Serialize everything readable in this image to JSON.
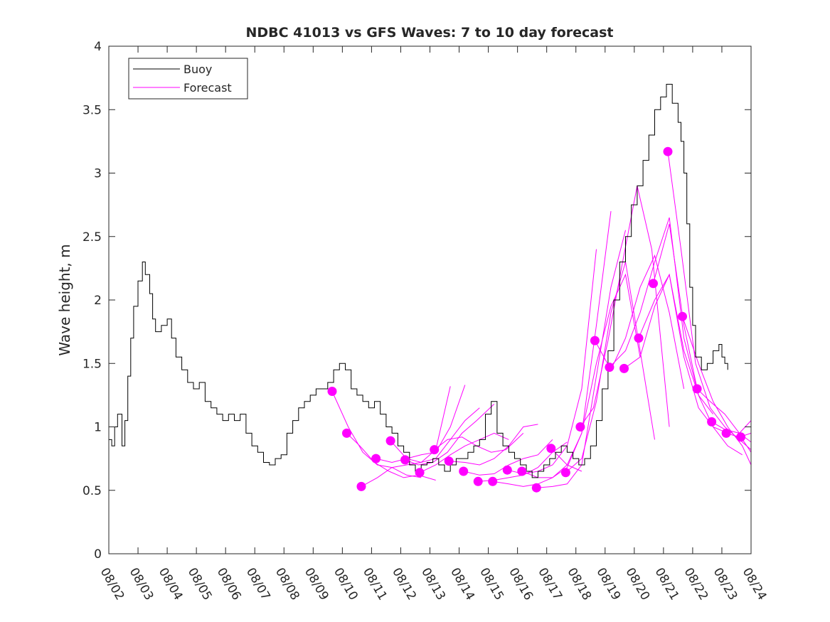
{
  "chart_data": {
    "type": "line",
    "title": "NDBC 41013 vs GFS Waves: 7 to 10 day forecast",
    "xlabel": "",
    "ylabel": "Wave height, m",
    "xlim": [
      0,
      22
    ],
    "ylim": [
      0,
      4
    ],
    "x_tick_labels": [
      "08/02",
      "08/03",
      "08/04",
      "08/05",
      "08/06",
      "08/07",
      "08/08",
      "08/09",
      "08/10",
      "08/11",
      "08/12",
      "08/13",
      "08/14",
      "08/15",
      "08/16",
      "08/17",
      "08/18",
      "08/19",
      "08/20",
      "08/21",
      "08/22",
      "08/23",
      "08/24"
    ],
    "y_tick_labels": [
      "0",
      "0.5",
      "1",
      "1.5",
      "2",
      "2.5",
      "3",
      "3.5",
      "4"
    ],
    "y_ticks": [
      0,
      0.5,
      1,
      1.5,
      2,
      2.5,
      3,
      3.5,
      4
    ],
    "legend": {
      "position": "top-left",
      "entries": [
        {
          "label": "Buoy",
          "color": "#000000"
        },
        {
          "label": "Forecast",
          "color": "#ff00ff"
        }
      ]
    },
    "colors": {
      "buoy": "#000000",
      "forecast": "#ff00ff",
      "axis": "#262626"
    },
    "series": [
      {
        "name": "Buoy",
        "x": [
          0,
          0.1,
          0.2,
          0.3,
          0.45,
          0.55,
          0.65,
          0.75,
          0.85,
          1.0,
          1.15,
          1.25,
          1.4,
          1.5,
          1.6,
          1.8,
          2.0,
          2.15,
          2.3,
          2.5,
          2.7,
          2.9,
          3.1,
          3.3,
          3.5,
          3.7,
          3.9,
          4.1,
          4.3,
          4.5,
          4.7,
          4.9,
          5.1,
          5.3,
          5.5,
          5.7,
          5.9,
          6.1,
          6.3,
          6.5,
          6.7,
          6.9,
          7.1,
          7.3,
          7.5,
          7.7,
          7.9,
          8.1,
          8.3,
          8.5,
          8.7,
          8.9,
          9.1,
          9.3,
          9.5,
          9.7,
          9.9,
          10.1,
          10.3,
          10.5,
          10.7,
          10.9,
          11.1,
          11.3,
          11.5,
          11.7,
          11.9,
          12.1,
          12.3,
          12.5,
          12.7,
          12.9,
          13.1,
          13.3,
          13.5,
          13.7,
          13.9,
          14.1,
          14.3,
          14.5,
          14.7,
          14.9,
          15.1,
          15.3,
          15.5,
          15.7,
          15.9,
          16.1,
          16.3,
          16.5,
          16.7,
          16.9,
          17.1,
          17.3,
          17.5,
          17.7,
          17.9,
          18.1,
          18.3,
          18.5,
          18.7,
          18.9,
          19.1,
          19.3,
          19.5,
          19.6,
          19.7,
          19.8,
          19.9,
          20.0,
          20.1,
          20.3,
          20.5,
          20.7,
          20.9,
          21.0,
          21.1,
          21.2
        ],
        "values": [
          0.9,
          0.85,
          1.0,
          1.1,
          0.85,
          1.05,
          1.4,
          1.7,
          1.95,
          2.15,
          2.3,
          2.2,
          2.05,
          1.85,
          1.75,
          1.8,
          1.85,
          1.7,
          1.55,
          1.45,
          1.35,
          1.3,
          1.35,
          1.2,
          1.15,
          1.1,
          1.05,
          1.1,
          1.05,
          1.1,
          0.95,
          0.85,
          0.8,
          0.72,
          0.7,
          0.75,
          0.78,
          0.95,
          1.05,
          1.15,
          1.2,
          1.25,
          1.3,
          1.3,
          1.35,
          1.45,
          1.5,
          1.45,
          1.3,
          1.25,
          1.2,
          1.15,
          1.2,
          1.1,
          1.0,
          0.95,
          0.85,
          0.8,
          0.7,
          0.65,
          0.7,
          0.72,
          0.75,
          0.7,
          0.65,
          0.7,
          0.75,
          0.75,
          0.8,
          0.85,
          0.9,
          1.1,
          1.2,
          0.95,
          0.85,
          0.8,
          0.75,
          0.7,
          0.65,
          0.6,
          0.65,
          0.7,
          0.75,
          0.8,
          0.85,
          0.8,
          0.75,
          0.7,
          0.75,
          0.85,
          1.05,
          1.3,
          1.6,
          2.0,
          2.3,
          2.5,
          2.75,
          2.9,
          3.1,
          3.3,
          3.5,
          3.6,
          3.7,
          3.55,
          3.4,
          3.25,
          3.0,
          2.6,
          2.1,
          1.8,
          1.55,
          1.45,
          1.5,
          1.6,
          1.65,
          1.55,
          1.5,
          1.45
        ]
      },
      {
        "name": "Forecast",
        "x": [
          7.65,
          8.2,
          8.7,
          9.2,
          9.7,
          10.2,
          10.7
        ],
        "values": [
          1.28,
          1.0,
          0.8,
          0.7,
          0.68,
          0.62,
          0.6
        ]
      },
      {
        "name": "Forecast",
        "x": [
          8.15,
          8.6,
          9.1,
          9.6,
          10.1,
          10.6,
          11.2
        ],
        "values": [
          0.95,
          0.85,
          0.72,
          0.65,
          0.6,
          0.62,
          0.58
        ]
      },
      {
        "name": "Forecast",
        "x": [
          8.65,
          9.2,
          9.7,
          10.2,
          10.7,
          11.2,
          11.7
        ],
        "values": [
          0.53,
          0.6,
          0.68,
          0.7,
          0.72,
          0.82,
          1.32
        ]
      },
      {
        "name": "Forecast",
        "x": [
          9.15,
          9.7,
          10.2,
          10.7,
          11.2,
          11.7,
          12.2
        ],
        "values": [
          0.75,
          0.72,
          0.75,
          0.78,
          0.8,
          1.0,
          1.33
        ]
      },
      {
        "name": "Forecast",
        "x": [
          9.65,
          10.2,
          10.7,
          11.2,
          11.7,
          12.2,
          12.7
        ],
        "values": [
          0.89,
          0.75,
          0.72,
          0.75,
          0.9,
          1.05,
          1.15
        ]
      },
      {
        "name": "Forecast",
        "x": [
          10.15,
          10.6,
          11.1,
          11.6,
          12.1,
          12.6,
          13.2
        ],
        "values": [
          0.74,
          0.7,
          0.72,
          0.8,
          0.95,
          1.05,
          1.18
        ]
      },
      {
        "name": "Forecast",
        "x": [
          10.65,
          11.2,
          11.7,
          12.2,
          12.7,
          13.2,
          13.7
        ],
        "values": [
          0.64,
          0.7,
          0.78,
          0.85,
          0.9,
          0.95,
          0.9
        ]
      },
      {
        "name": "Forecast",
        "x": [
          11.15,
          11.6,
          12.1,
          12.6,
          13.1,
          13.6,
          14.2
        ],
        "values": [
          0.82,
          0.9,
          0.92,
          0.85,
          0.8,
          0.82,
          0.95
        ]
      },
      {
        "name": "Forecast",
        "x": [
          11.65,
          12.2,
          12.7,
          13.2,
          13.7,
          14.2,
          14.7
        ],
        "values": [
          0.73,
          0.72,
          0.7,
          0.75,
          0.85,
          1.0,
          1.02
        ]
      },
      {
        "name": "Forecast",
        "x": [
          12.15,
          12.7,
          13.2,
          13.7,
          14.2,
          14.7,
          15.2
        ],
        "values": [
          0.65,
          0.62,
          0.63,
          0.7,
          0.75,
          0.78,
          0.9
        ]
      },
      {
        "name": "Forecast",
        "x": [
          12.65,
          13.2,
          13.7,
          14.2,
          14.7,
          15.2,
          15.7
        ],
        "values": [
          0.57,
          0.58,
          0.6,
          0.62,
          0.68,
          0.8,
          0.88
        ]
      },
      {
        "name": "Forecast",
        "x": [
          13.15,
          13.7,
          14.2,
          14.7,
          15.2,
          15.7,
          16.2
        ],
        "values": [
          0.57,
          0.55,
          0.53,
          0.55,
          0.6,
          0.7,
          0.65
        ]
      },
      {
        "name": "Forecast",
        "x": [
          13.65,
          14.2,
          14.7,
          15.2,
          15.7,
          16.2,
          16.7
        ],
        "values": [
          0.66,
          0.63,
          0.65,
          0.7,
          0.85,
          1.3,
          2.4
        ]
      },
      {
        "name": "Forecast",
        "x": [
          14.15,
          14.7,
          15.2,
          15.7,
          16.2,
          16.7,
          17.2
        ],
        "values": [
          0.65,
          0.6,
          0.6,
          0.68,
          0.95,
          1.8,
          2.7
        ]
      },
      {
        "name": "Forecast",
        "x": [
          14.65,
          15.2,
          15.7,
          16.2,
          16.7,
          17.2,
          17.7
        ],
        "values": [
          0.52,
          0.53,
          0.55,
          0.7,
          1.4,
          2.1,
          2.55
        ]
      },
      {
        "name": "Forecast",
        "x": [
          15.15,
          15.7,
          16.2,
          16.7,
          17.2,
          17.7,
          18.2
        ],
        "values": [
          0.83,
          0.7,
          0.95,
          1.5,
          1.95,
          2.2,
          1.55
        ]
      },
      {
        "name": "Forecast",
        "x": [
          15.65,
          16.2,
          16.7,
          17.2,
          17.7,
          18.2,
          18.7
        ],
        "values": [
          0.64,
          0.75,
          1.2,
          1.9,
          2.3,
          1.6,
          0.9
        ]
      },
      {
        "name": "Forecast",
        "x": [
          16.15,
          16.6,
          17.1,
          17.6,
          18.1,
          18.6,
          19.2
        ],
        "values": [
          1.0,
          1.15,
          1.68,
          2.3,
          2.9,
          2.4,
          1.0
        ]
      },
      {
        "name": "Forecast",
        "x": [
          16.65,
          17.2,
          17.7,
          18.2,
          18.7,
          19.2,
          19.7
        ],
        "values": [
          1.68,
          1.45,
          1.7,
          2.1,
          2.35,
          1.9,
          1.3
        ]
      },
      {
        "name": "Forecast",
        "x": [
          17.15,
          17.7,
          18.2,
          18.7,
          19.2,
          19.7,
          20.2
        ],
        "values": [
          1.47,
          1.6,
          1.9,
          2.3,
          2.65,
          1.7,
          1.25
        ]
      },
      {
        "name": "Forecast",
        "x": [
          17.65,
          18.2,
          18.7,
          19.2,
          19.7,
          20.2,
          20.7
        ],
        "values": [
          1.46,
          1.55,
          1.95,
          2.2,
          1.6,
          1.25,
          1.1
        ]
      },
      {
        "name": "Forecast",
        "x": [
          18.15,
          18.7,
          19.2,
          19.7,
          20.2,
          20.7,
          21.2
        ],
        "values": [
          1.7,
          2.0,
          2.2,
          1.55,
          1.15,
          1.0,
          0.95
        ]
      },
      {
        "name": "Forecast",
        "x": [
          18.65,
          19.2,
          19.7,
          20.2,
          20.7,
          21.2,
          21.7
        ],
        "values": [
          2.13,
          2.6,
          1.8,
          1.25,
          1.0,
          0.85,
          0.78
        ]
      },
      {
        "name": "Forecast",
        "x": [
          19.15,
          19.6,
          20.1,
          20.6,
          21.1,
          21.6,
          22.0
        ],
        "values": [
          3.17,
          2.4,
          1.5,
          1.15,
          1.0,
          0.9,
          0.82
        ]
      },
      {
        "name": "Forecast",
        "x": [
          19.65,
          20.2,
          20.7,
          21.2,
          21.7,
          22.0
        ],
        "values": [
          1.87,
          1.5,
          1.2,
          1.0,
          0.85,
          0.7
        ]
      },
      {
        "name": "Forecast",
        "x": [
          20.15,
          20.6,
          21.1,
          21.6,
          22.0
        ],
        "values": [
          1.3,
          1.2,
          1.1,
          0.95,
          0.88
        ]
      },
      {
        "name": "Forecast",
        "x": [
          20.65,
          21.1,
          21.6,
          22.0
        ],
        "values": [
          1.04,
          0.98,
          0.95,
          1.05
        ]
      },
      {
        "name": "Forecast",
        "x": [
          21.15,
          21.6,
          22.0
        ],
        "values": [
          0.95,
          0.92,
          0.95
        ]
      },
      {
        "name": "Forecast",
        "x": [
          21.65,
          22.0
        ],
        "values": [
          0.92,
          0.8
        ]
      }
    ],
    "forecast_markers": {
      "x": [
        7.65,
        8.15,
        8.65,
        9.15,
        9.65,
        10.15,
        10.65,
        11.15,
        11.65,
        12.15,
        12.65,
        13.15,
        13.65,
        14.15,
        14.65,
        15.15,
        15.65,
        16.15,
        16.65,
        17.15,
        17.65,
        18.15,
        18.65,
        19.15,
        19.65,
        20.15,
        20.65,
        21.15,
        21.65
      ],
      "values": [
        1.28,
        0.95,
        0.53,
        0.75,
        0.89,
        0.74,
        0.64,
        0.82,
        0.73,
        0.65,
        0.57,
        0.57,
        0.66,
        0.65,
        0.52,
        0.83,
        0.64,
        1.0,
        1.68,
        1.47,
        1.46,
        1.7,
        2.13,
        3.17,
        1.87,
        1.3,
        1.04,
        0.95,
        0.92
      ]
    }
  }
}
